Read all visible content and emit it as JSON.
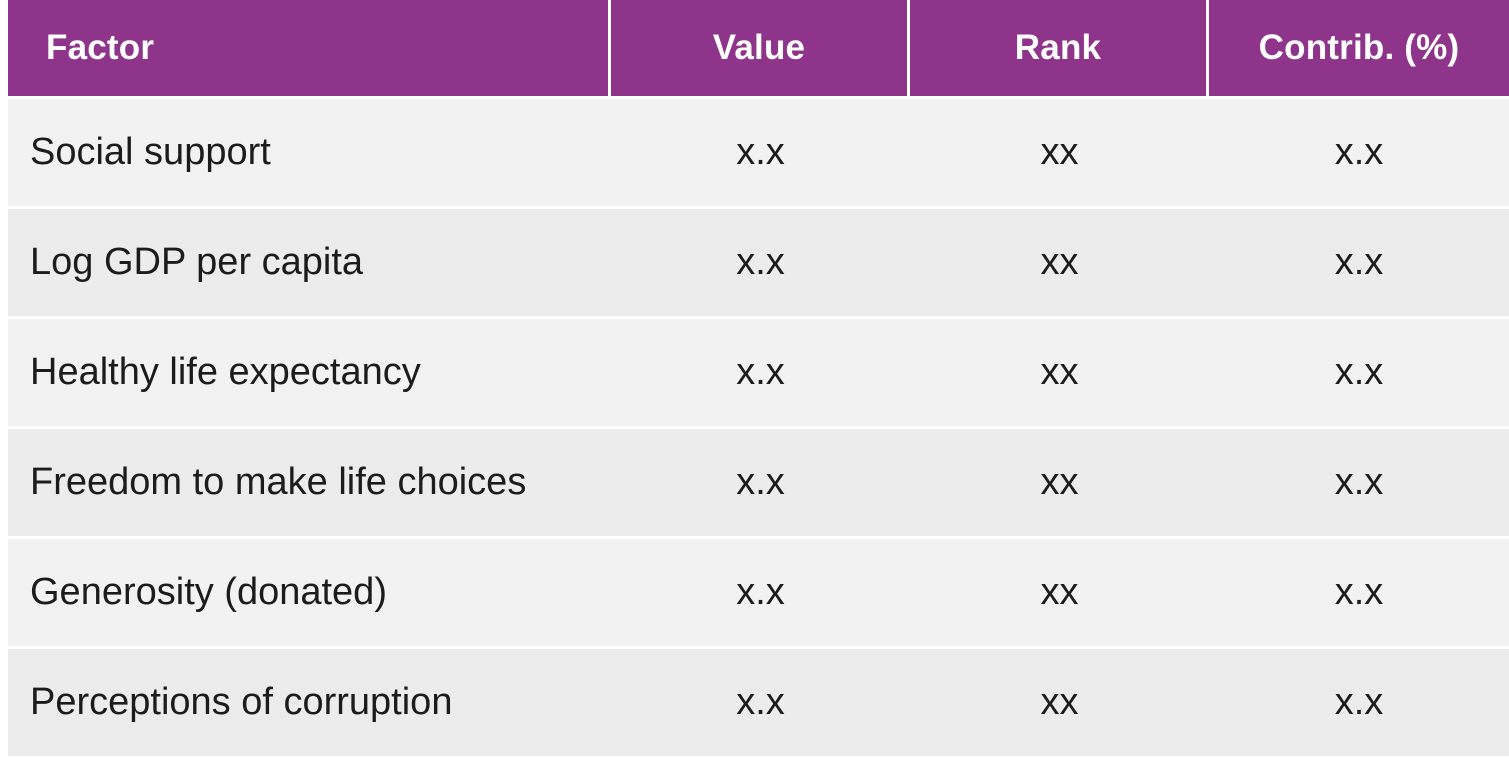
{
  "table": {
    "headers": {
      "factor": "Factor",
      "value": "Value",
      "rank": "Rank",
      "contrib": "Contrib. (%)"
    },
    "rows": [
      {
        "factor": "Social support",
        "value": "x.x",
        "rank": "xx",
        "contrib": "x.x"
      },
      {
        "factor": "Log GDP per capita",
        "value": "x.x",
        "rank": "xx",
        "contrib": "x.x"
      },
      {
        "factor": "Healthy life expectancy",
        "value": "x.x",
        "rank": "xx",
        "contrib": "x.x"
      },
      {
        "factor": "Freedom to make life choices",
        "value": "x.x",
        "rank": "xx",
        "contrib": "x.x"
      },
      {
        "factor": "Generosity (donated)",
        "value": "x.x",
        "rank": "xx",
        "contrib": "x.x"
      },
      {
        "factor": "Perceptions of corruption",
        "value": "x.x",
        "rank": "xx",
        "contrib": "x.x"
      }
    ]
  },
  "colors": {
    "header_background": "#8e348b",
    "header_text": "#ffffff",
    "row_background": "#f2f2f2",
    "row_text": "#1c1c1c"
  }
}
